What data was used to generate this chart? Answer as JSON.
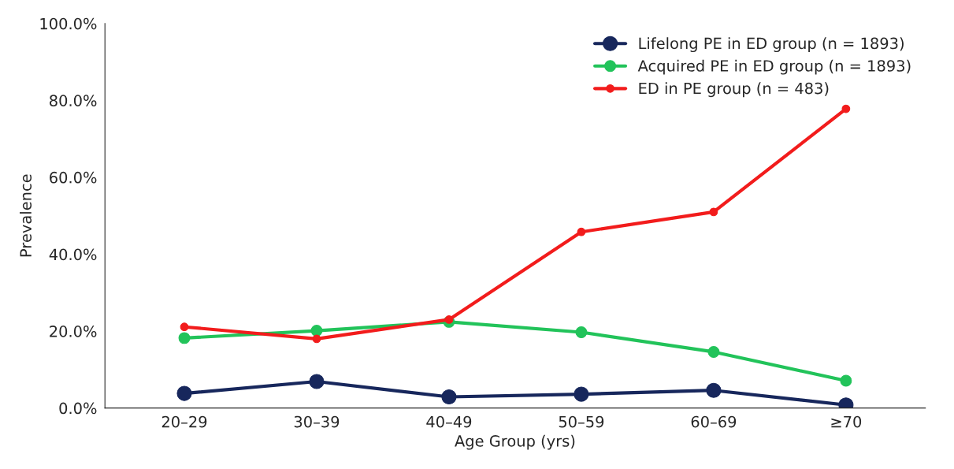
{
  "chart_data": {
    "type": "line",
    "xlabel": "Age Group (yrs)",
    "ylabel": "Prevalence",
    "categories": [
      "20–29",
      "30–39",
      "40–49",
      "50–59",
      "60–69",
      "≥70"
    ],
    "series": [
      {
        "name": "Lifelong PE in ED group (n = 1893)",
        "color": "#17275c",
        "values": [
          3.8,
          6.9,
          2.9,
          3.6,
          4.6,
          0.8
        ]
      },
      {
        "name": "Acquired PE in ED group (n = 1893)",
        "color": "#22c35a",
        "values": [
          18.2,
          20.1,
          22.4,
          19.7,
          14.6,
          7.1
        ]
      },
      {
        "name": "ED in PE group (n = 483)",
        "color": "#f21c1c",
        "values": [
          21.1,
          18.0,
          23.0,
          45.8,
          51.0,
          77.8
        ]
      }
    ],
    "ylim": [
      0,
      100
    ],
    "yticks": [
      {
        "value": 0,
        "label": "0.0%"
      },
      {
        "value": 20,
        "label": "20.0%"
      },
      {
        "value": 40,
        "label": "40.0%"
      },
      {
        "value": 60,
        "label": "60.0%"
      },
      {
        "value": 80,
        "label": "80.0%"
      },
      {
        "value": 100,
        "label": "100.0%"
      }
    ],
    "grid": false,
    "legend": "top right",
    "marker": "circle",
    "line_style": "solid"
  }
}
